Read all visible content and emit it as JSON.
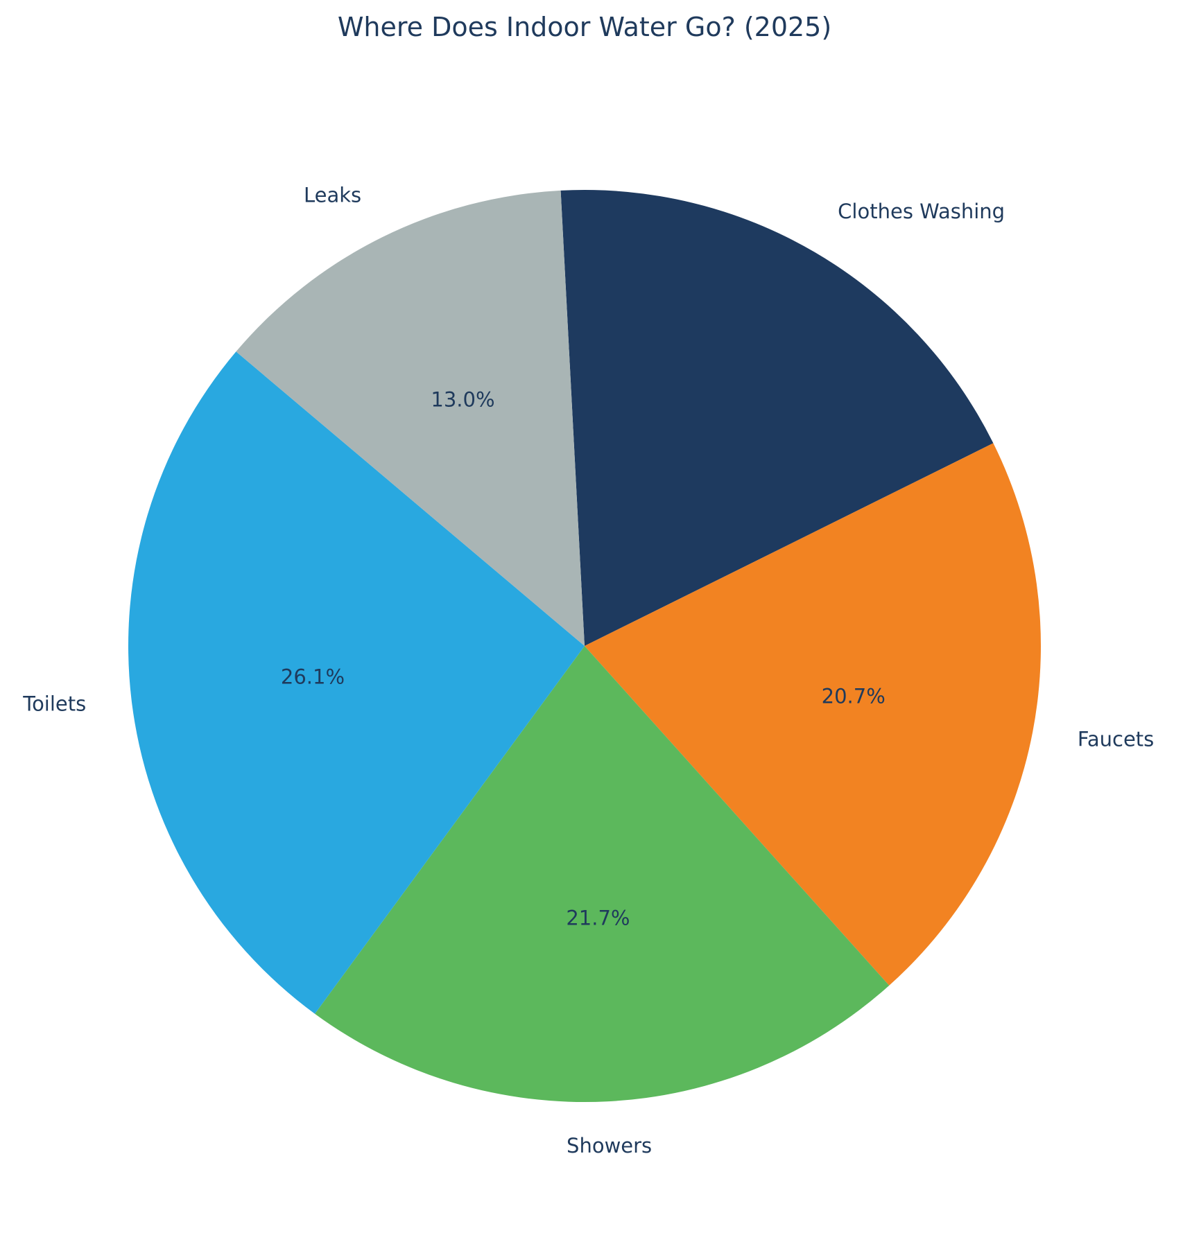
{
  "chart_data": {
    "type": "pie",
    "title": "Where Does Indoor Water Go? (2025)",
    "slices": [
      {
        "label": "Clothes Washing",
        "value": 18.5,
        "pct_text": "",
        "color": "#1e3a5f"
      },
      {
        "label": "Faucets",
        "value": 20.7,
        "pct_text": "20.7%",
        "color": "#f28322"
      },
      {
        "label": "Showers",
        "value": 21.7,
        "pct_text": "21.7%",
        "color": "#5cb85c"
      },
      {
        "label": "Toilets",
        "value": 26.1,
        "pct_text": "26.1%",
        "color": "#29a8e0"
      },
      {
        "label": "Leaks",
        "value": 13.0,
        "pct_text": "13.0%",
        "color": "#a9b5b5"
      }
    ],
    "start_angle_deg": 93,
    "direction": "clockwise",
    "legend": "none"
  }
}
